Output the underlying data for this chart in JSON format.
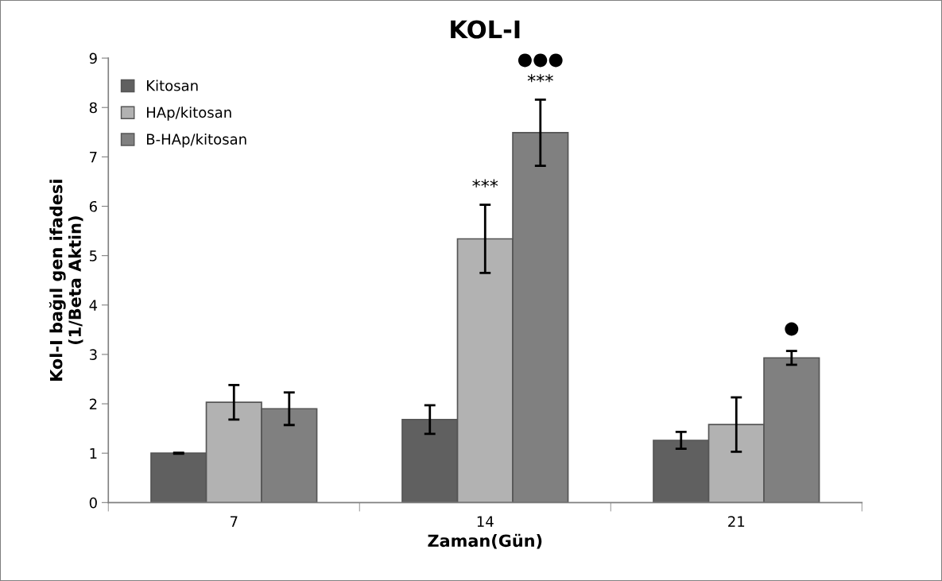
{
  "chart_data": {
    "type": "bar",
    "title": "KOL-I",
    "xlabel": "Zaman(Gün)",
    "ylabel": "Kol-I bağıl gen ifadesi\n(1/Beta Aktin)",
    "categories": [
      "7",
      "14",
      "21"
    ],
    "series": [
      {
        "name": "Kitosan",
        "color": "#606060",
        "values": [
          1.0,
          1.68,
          1.26
        ],
        "errors": [
          0.01,
          0.29,
          0.17
        ]
      },
      {
        "name": "HAp/kitosan",
        "color": "#b2b2b2",
        "values": [
          2.03,
          5.34,
          1.58
        ],
        "errors": [
          0.35,
          0.69,
          0.55
        ]
      },
      {
        "name": "B-HAp/kitosan",
        "color": "#808080",
        "values": [
          1.9,
          7.49,
          2.93
        ],
        "errors": [
          0.33,
          0.67,
          0.14
        ]
      }
    ],
    "annotations": [
      "***",
      "***",
      "●●●",
      "●"
    ],
    "ylim": [
      0,
      9
    ],
    "yticks": [
      0,
      1,
      2,
      3,
      4,
      5,
      6,
      7,
      8,
      9
    ],
    "grid": false,
    "legend": "top left"
  }
}
